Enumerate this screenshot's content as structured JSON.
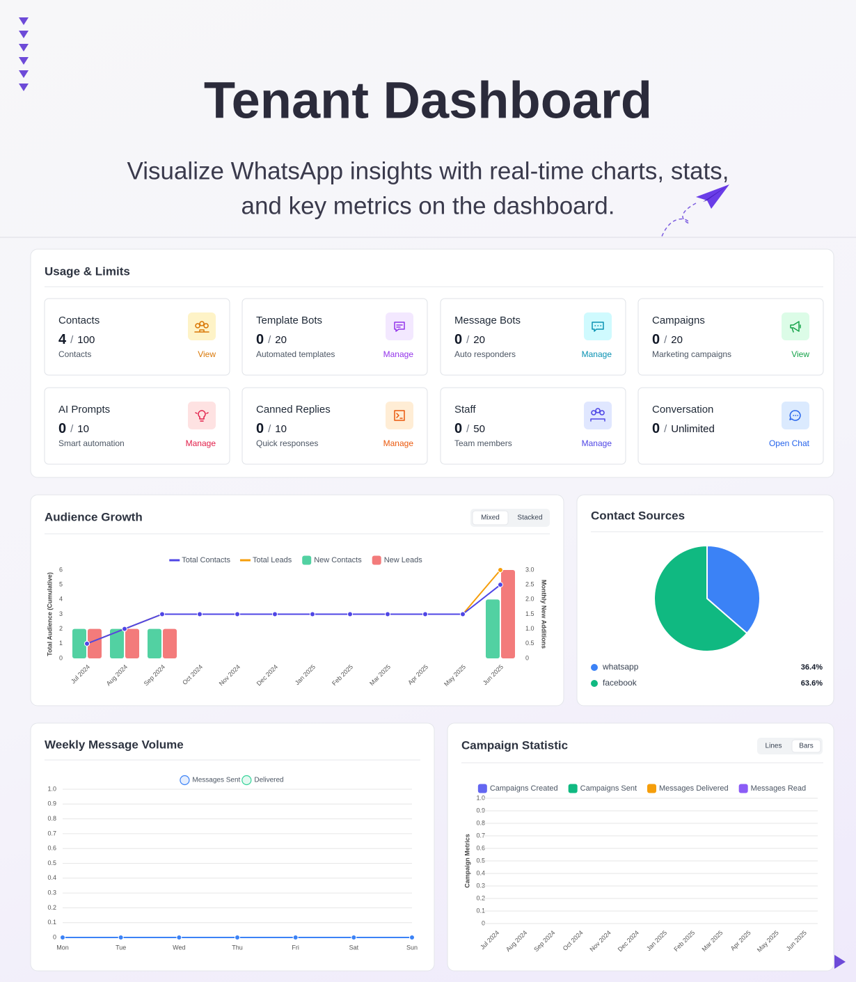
{
  "header": {
    "title": "Tenant Dashboard",
    "subtitle_lines": [
      "Visualize WhatsApp insights with real-time charts, stats,",
      "and key metrics on the dashboard."
    ]
  },
  "usage": {
    "title": "Usage & Limits",
    "separator": "/",
    "cards": [
      {
        "title": "Contacts",
        "used": 4,
        "limit": 100,
        "caption": "Contacts",
        "action": "View"
      },
      {
        "title": "Template Bots",
        "used": 0,
        "limit": 20,
        "caption": "Automated templates",
        "action": "Manage"
      },
      {
        "title": "Message Bots",
        "used": 0,
        "limit": 20,
        "caption": "Auto responders",
        "action": "Manage"
      },
      {
        "title": "Campaigns",
        "used": 0,
        "limit": 20,
        "caption": "Marketing campaigns",
        "action": "View"
      },
      {
        "title": "AI Prompts",
        "used": 0,
        "limit": 10,
        "caption": "Smart automation",
        "action": "Manage"
      },
      {
        "title": "Canned Replies",
        "used": 0,
        "limit": 10,
        "caption": "Quick responses",
        "action": "Manage"
      },
      {
        "title": "Staff",
        "used": 0,
        "limit": 50,
        "caption": "Team members",
        "action": "Manage"
      },
      {
        "title": "Conversation",
        "used": 0,
        "limit": "Unlimited",
        "action": "Open Chat"
      }
    ]
  },
  "chart_data": [
    {
      "type": "combo",
      "title": "Audience Growth",
      "toggles": [
        "Mixed",
        "Stacked"
      ],
      "categories": [
        "Jul 2024",
        "Aug 2024",
        "Sep 2024",
        "Oct 2024",
        "Nov 2024",
        "Dec 2024",
        "Jan 2025",
        "Feb 2025",
        "Mar 2025",
        "Apr 2025",
        "May 2025",
        "Jun 2025"
      ],
      "ylabel": "Total Audience (Cumulative)",
      "y2label": "Monthly New Additions",
      "ylim": [
        0,
        6
      ],
      "yticks": [
        0,
        1,
        2,
        3,
        4,
        5,
        6
      ],
      "y2lim": [
        0,
        3
      ],
      "y2ticks": [
        0,
        0.5,
        {
          "value": 1,
          "label": "1.0"
        },
        1.5,
        {
          "value": 2,
          "label": "2.0"
        },
        2.5,
        {
          "value": 3,
          "label": "3.0"
        }
      ],
      "grid": false,
      "series": [
        {
          "name": "Total Contacts",
          "type": "line",
          "color": "#4f46e5",
          "values": [
            1,
            2,
            3,
            3,
            3,
            3,
            3,
            3,
            3,
            3,
            3,
            5
          ]
        },
        {
          "name": "Total Leads",
          "type": "line",
          "color": "#f59e0b",
          "values": [
            1,
            2,
            3,
            3,
            3,
            3,
            3,
            3,
            3,
            3,
            3,
            6
          ]
        },
        {
          "name": "New Contacts",
          "type": "bar",
          "axis": "y2",
          "color": "#52d1a2",
          "values": [
            1,
            1,
            1,
            0,
            0,
            0,
            0,
            0,
            0,
            0,
            0,
            2
          ]
        },
        {
          "name": "New Leads",
          "type": "bar",
          "axis": "y2",
          "color": "#f37b7b",
          "values": [
            1,
            1,
            1,
            0,
            0,
            0,
            0,
            0,
            0,
            0,
            0,
            3
          ]
        }
      ]
    },
    {
      "type": "pie",
      "title": "Contact Sources",
      "categories": [
        "whatsapp",
        "facebook"
      ],
      "values": [
        36.4,
        63.6
      ],
      "value_labels": [
        "36.4%",
        "63.6%"
      ],
      "colors": [
        "#3b82f6",
        "#10b981"
      ]
    },
    {
      "type": "line",
      "title": "Weekly Message Volume",
      "categories": [
        "Mon",
        "Tue",
        "Wed",
        "Thu",
        "Fri",
        "Sat",
        "Sun"
      ],
      "ylim": [
        0,
        1
      ],
      "yticks": [
        0,
        0.1,
        0.2,
        0.3,
        0.4,
        0.5,
        0.6,
        0.7,
        0.8,
        0.9,
        {
          "value": 1,
          "label": "1.0"
        }
      ],
      "grid": true,
      "series": [
        {
          "name": "Messages Sent",
          "color": "#3b82f6",
          "values": [
            0,
            0,
            0,
            0,
            0,
            0,
            0
          ]
        },
        {
          "name": "Delivered",
          "color": "#34d399",
          "values": [
            0,
            0,
            0,
            0,
            0,
            0,
            0
          ]
        }
      ]
    },
    {
      "type": "bar",
      "title": "Campaign Statistic",
      "toggles": [
        "Lines",
        "Bars"
      ],
      "categories": [
        "Jul 2024",
        "Aug 2024",
        "Sep 2024",
        "Oct 2024",
        "Nov 2024",
        "Dec 2024",
        "Jan 2025",
        "Feb 2025",
        "Mar 2025",
        "Apr 2025",
        "May 2025",
        "Jun 2025"
      ],
      "ylabel": "Campaign Metrics",
      "ylim": [
        0,
        1
      ],
      "yticks": [
        0,
        0.1,
        0.2,
        0.3,
        0.4,
        0.5,
        0.6,
        0.7,
        0.8,
        0.9,
        {
          "value": 1,
          "label": "1.0"
        }
      ],
      "grid": true,
      "series": [
        {
          "name": "Campaigns Created",
          "color": "#6366f1",
          "values": [
            0,
            0,
            0,
            0,
            0,
            0,
            0,
            0,
            0,
            0,
            0,
            0
          ]
        },
        {
          "name": "Campaigns Sent",
          "color": "#10b981",
          "values": [
            0,
            0,
            0,
            0,
            0,
            0,
            0,
            0,
            0,
            0,
            0,
            0
          ]
        },
        {
          "name": "Messages Delivered",
          "color": "#f59e0b",
          "values": [
            0,
            0,
            0,
            0,
            0,
            0,
            0,
            0,
            0,
            0,
            0,
            0
          ]
        },
        {
          "name": "Messages Read",
          "color": "#8b5cf6",
          "values": [
            0,
            0,
            0,
            0,
            0,
            0,
            0,
            0,
            0,
            0,
            0,
            0
          ]
        }
      ]
    }
  ]
}
